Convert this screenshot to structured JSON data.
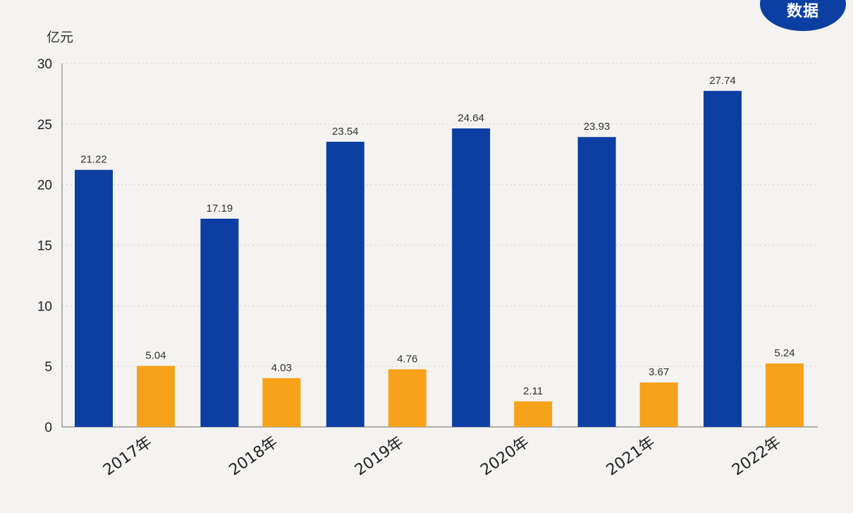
{
  "badge_text": "数据",
  "chart_data": {
    "type": "bar",
    "ylabel": "亿元",
    "ylim": [
      0,
      30
    ],
    "yticks": [
      0,
      5,
      10,
      15,
      20,
      25,
      30
    ],
    "grid": true,
    "categories": [
      "2017年",
      "2018年",
      "2019年",
      "2020年",
      "2021年",
      "2022年"
    ],
    "series": [
      {
        "values": [
          21.22,
          17.19,
          23.54,
          24.64,
          23.93,
          27.74
        ],
        "color": "#0d3fa3"
      },
      {
        "values": [
          5.04,
          4.03,
          4.76,
          2.11,
          3.67,
          5.24
        ],
        "color": "#f7a21b"
      }
    ]
  }
}
